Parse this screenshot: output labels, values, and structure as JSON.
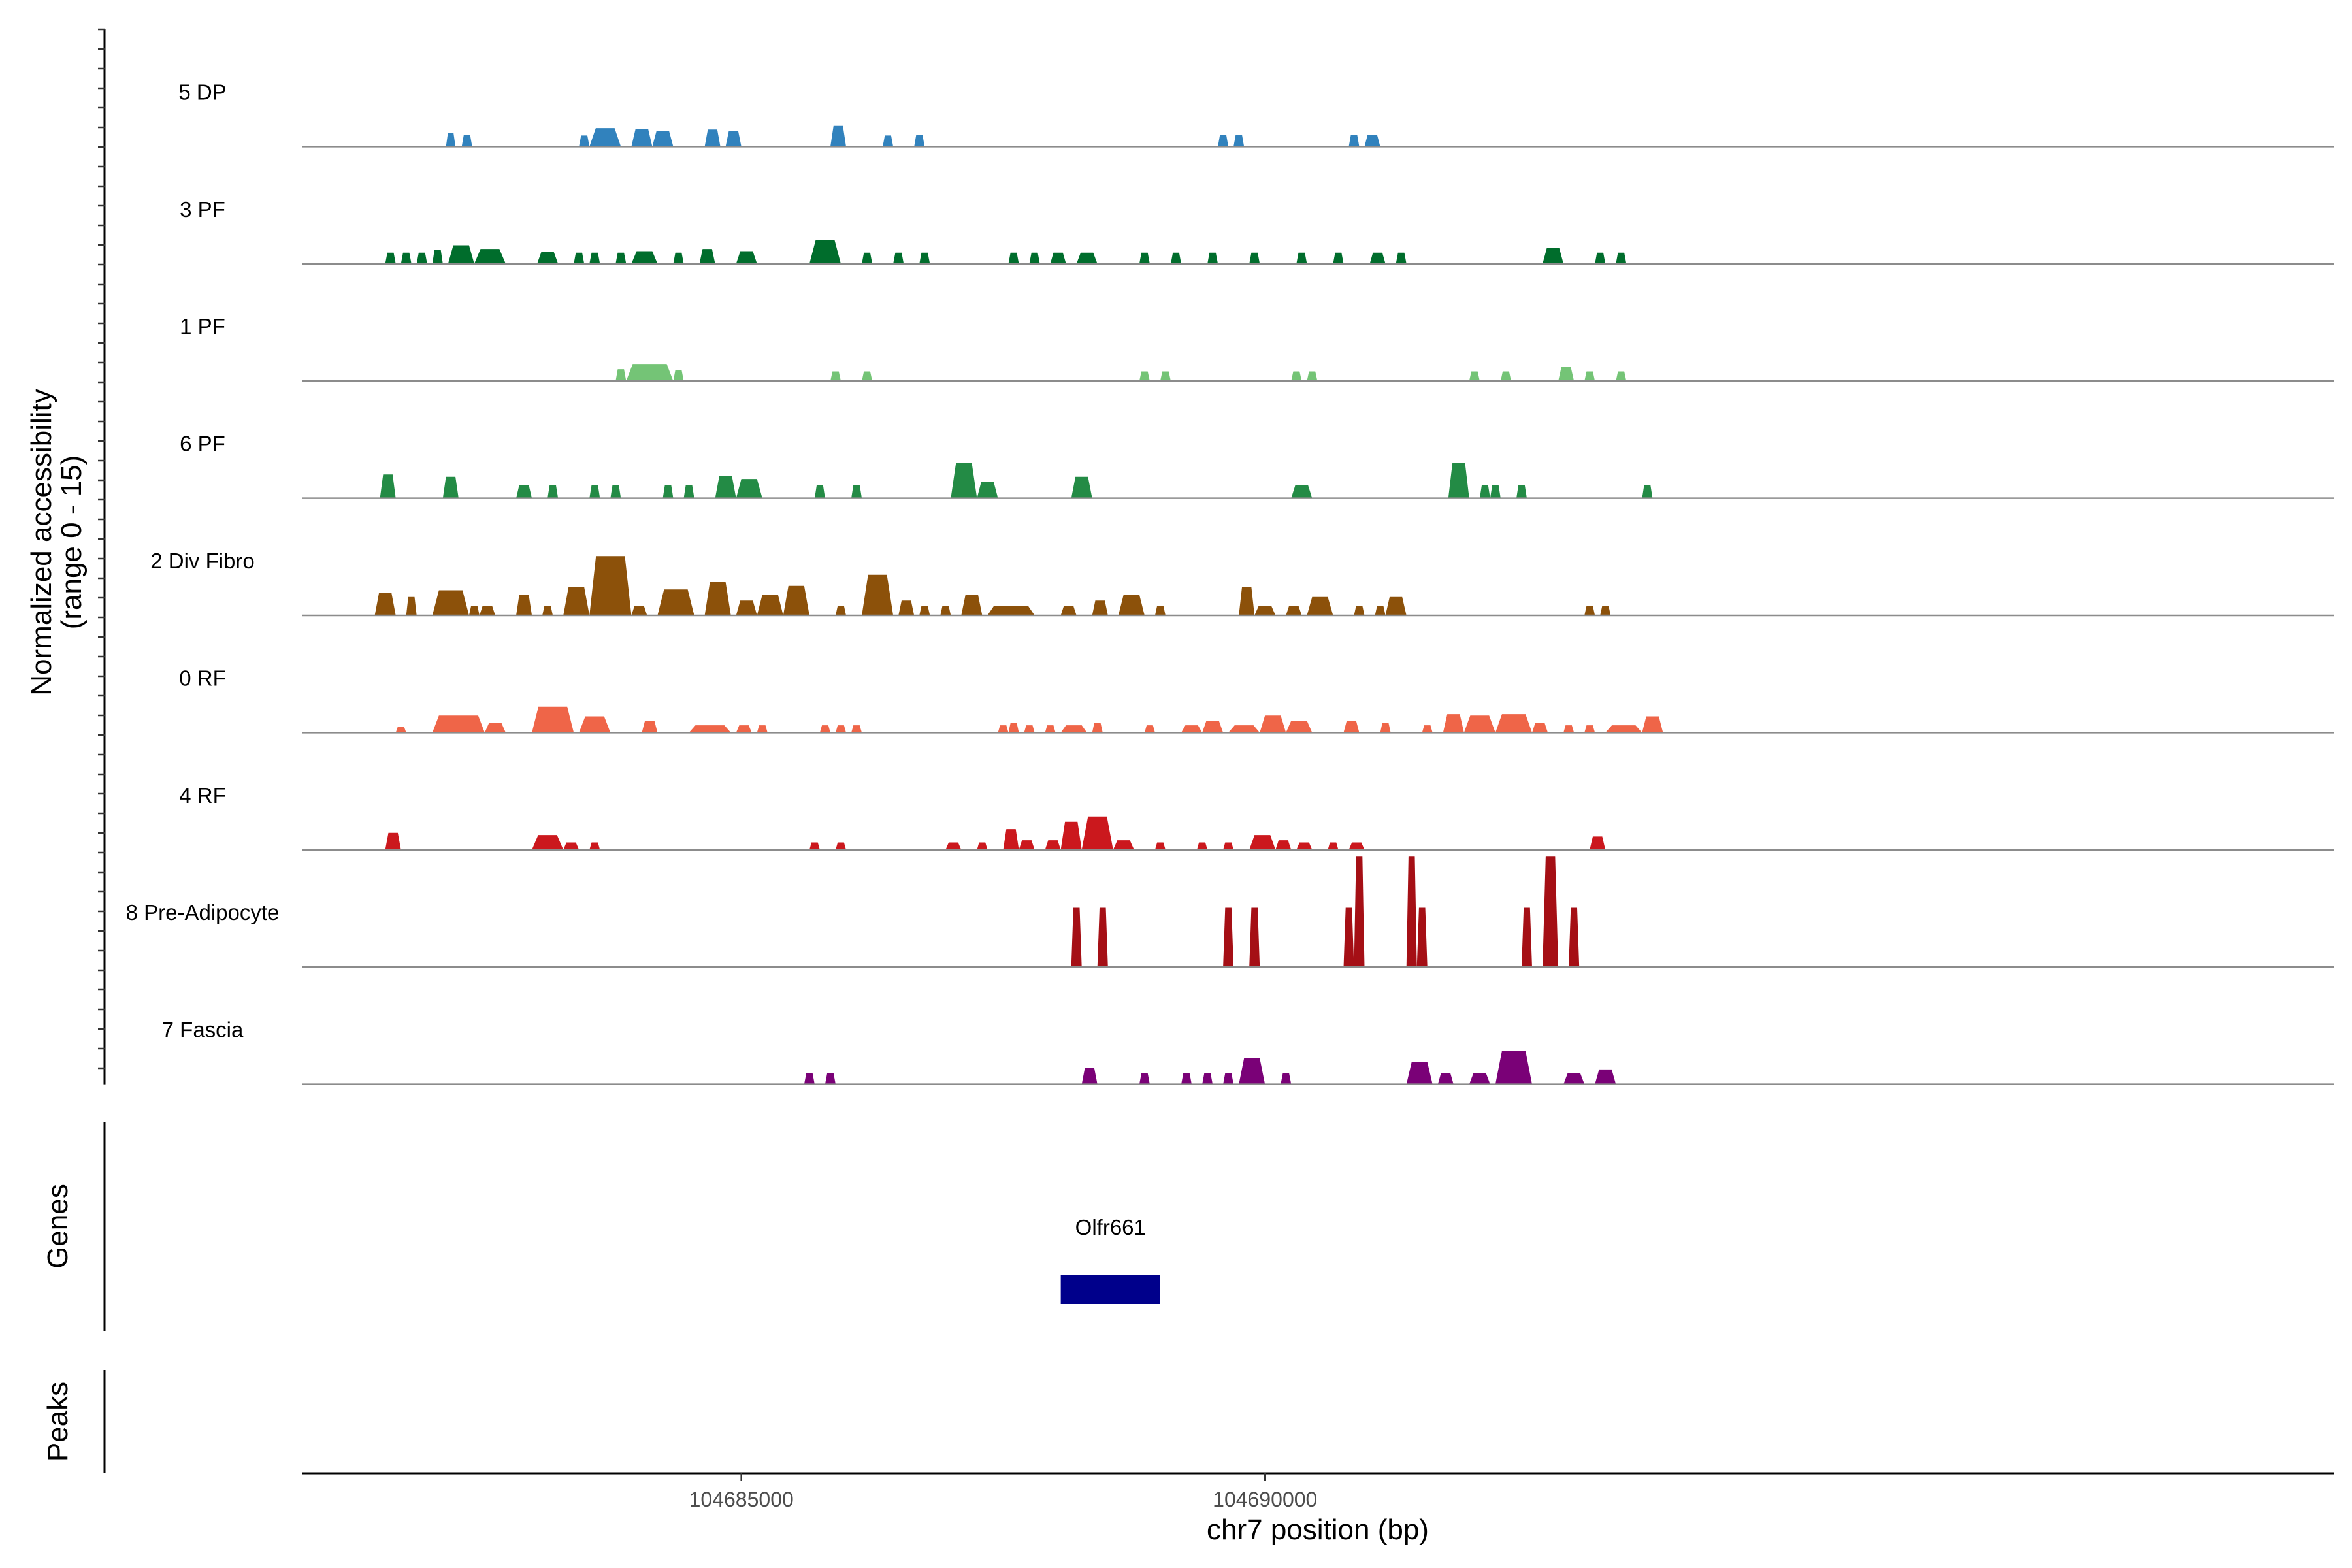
{
  "chart_data": {
    "type": "area",
    "title": "",
    "ylabel_line1": "Normalized accessibility",
    "ylabel_line2": "(range 0 - 15)",
    "yrange": [
      0,
      15
    ],
    "xlabel": "chr7 position (bp)",
    "xlim": [
      104680810,
      104700210
    ],
    "xticks": [
      {
        "value": 104685000,
        "label": "104685000"
      },
      {
        "value": 104690000,
        "label": "104690000"
      }
    ],
    "genes_label": "Genes",
    "peaks_label": "Peaks",
    "genes": [
      {
        "name": "Olfr661",
        "start": 104688050,
        "end": 104689000,
        "color": "#00008b"
      }
    ],
    "tracks": [
      {
        "name": "5 DP",
        "color": "#3182bd",
        "peaks": [
          [
            104682180,
            104682270,
            1.8
          ],
          [
            104682330,
            104682430,
            1.6
          ],
          [
            104683450,
            104683550,
            1.5
          ],
          [
            104683550,
            104683850,
            2.5
          ],
          [
            104683950,
            104684150,
            2.4
          ],
          [
            104684150,
            104684350,
            2.1
          ],
          [
            104684650,
            104684800,
            2.3
          ],
          [
            104684850,
            104685000,
            2.1
          ],
          [
            104685850,
            104686000,
            2.8
          ],
          [
            104686350,
            104686450,
            1.5
          ],
          [
            104686650,
            104686750,
            1.6
          ],
          [
            104689550,
            104689650,
            1.6
          ],
          [
            104689700,
            104689800,
            1.6
          ],
          [
            104690800,
            104690900,
            1.6
          ],
          [
            104690950,
            104691100,
            1.6
          ]
        ]
      },
      {
        "name": "3 PF",
        "color": "#006d2c",
        "peaks": [
          [
            104681600,
            104681700,
            1.5
          ],
          [
            104681750,
            104681850,
            1.5
          ],
          [
            104681900,
            104682000,
            1.5
          ],
          [
            104682050,
            104682150,
            1.9
          ],
          [
            104682200,
            104682450,
            2.5
          ],
          [
            104682450,
            104682750,
            2.0
          ],
          [
            104683050,
            104683250,
            1.6
          ],
          [
            104683400,
            104683500,
            1.5
          ],
          [
            104683550,
            104683650,
            1.5
          ],
          [
            104683800,
            104683900,
            1.5
          ],
          [
            104683950,
            104684200,
            1.7
          ],
          [
            104684350,
            104684450,
            1.5
          ],
          [
            104684600,
            104684750,
            2.0
          ],
          [
            104684950,
            104685150,
            1.7
          ],
          [
            104685650,
            104685950,
            3.2
          ],
          [
            104686150,
            104686250,
            1.5
          ],
          [
            104686450,
            104686550,
            1.5
          ],
          [
            104686700,
            104686800,
            1.5
          ],
          [
            104687550,
            104687650,
            1.5
          ],
          [
            104687750,
            104687850,
            1.5
          ],
          [
            104687950,
            104688100,
            1.5
          ],
          [
            104688200,
            104688400,
            1.5
          ],
          [
            104688800,
            104688900,
            1.5
          ],
          [
            104689100,
            104689200,
            1.5
          ],
          [
            104689450,
            104689550,
            1.5
          ],
          [
            104689850,
            104689950,
            1.5
          ],
          [
            104690300,
            104690400,
            1.5
          ],
          [
            104690650,
            104690750,
            1.5
          ],
          [
            104691000,
            104691150,
            1.5
          ],
          [
            104691250,
            104691350,
            1.5
          ],
          [
            104692650,
            104692850,
            2.1
          ],
          [
            104693150,
            104693250,
            1.5
          ],
          [
            104693350,
            104693450,
            1.5
          ]
        ]
      },
      {
        "name": "1 PF",
        "color": "#74c476",
        "peaks": [
          [
            104683800,
            104683900,
            1.6
          ],
          [
            104683900,
            104684350,
            2.3
          ],
          [
            104684350,
            104684450,
            1.5
          ],
          [
            104685850,
            104685950,
            1.3
          ],
          [
            104686150,
            104686250,
            1.3
          ],
          [
            104688800,
            104688900,
            1.3
          ],
          [
            104689000,
            104689100,
            1.3
          ],
          [
            104690250,
            104690350,
            1.3
          ],
          [
            104690400,
            104690500,
            1.3
          ],
          [
            104691950,
            104692050,
            1.3
          ],
          [
            104692250,
            104692350,
            1.3
          ],
          [
            104692800,
            104692950,
            1.9
          ],
          [
            104693050,
            104693150,
            1.3
          ],
          [
            104693350,
            104693450,
            1.3
          ]
        ]
      },
      {
        "name": "6 PF",
        "color": "#238b45",
        "peaks": [
          [
            104681550,
            104681700,
            3.2
          ],
          [
            104682150,
            104682300,
            2.9
          ],
          [
            104682850,
            104683000,
            1.8
          ],
          [
            104683150,
            104683250,
            1.8
          ],
          [
            104683550,
            104683650,
            1.8
          ],
          [
            104683750,
            104683850,
            1.8
          ],
          [
            104684250,
            104684350,
            1.8
          ],
          [
            104684450,
            104684550,
            1.8
          ],
          [
            104684750,
            104684950,
            3.0
          ],
          [
            104684950,
            104685200,
            2.6
          ],
          [
            104685700,
            104685800,
            1.8
          ],
          [
            104686050,
            104686150,
            1.8
          ],
          [
            104687000,
            104687250,
            4.8
          ],
          [
            104687250,
            104687450,
            2.2
          ],
          [
            104688150,
            104688350,
            2.9
          ],
          [
            104690250,
            104690450,
            1.8
          ],
          [
            104691750,
            104691950,
            4.8
          ],
          [
            104692050,
            104692150,
            1.8
          ],
          [
            104692150,
            104692250,
            1.8
          ],
          [
            104692400,
            104692500,
            1.8
          ],
          [
            104693600,
            104693700,
            1.8
          ]
        ]
      },
      {
        "name": "2 Div Fibro",
        "color": "#8c510a",
        "peaks": [
          [
            104681500,
            104681700,
            3.0
          ],
          [
            104681800,
            104681900,
            2.5
          ],
          [
            104682050,
            104682400,
            3.4
          ],
          [
            104682400,
            104682500,
            1.3
          ],
          [
            104682500,
            104682650,
            1.3
          ],
          [
            104682850,
            104683000,
            2.8
          ],
          [
            104683100,
            104683200,
            1.3
          ],
          [
            104683300,
            104683550,
            3.8
          ],
          [
            104683550,
            104683950,
            8.0
          ],
          [
            104683950,
            104684100,
            1.3
          ],
          [
            104684200,
            104684550,
            3.5
          ],
          [
            104684650,
            104684900,
            4.5
          ],
          [
            104684950,
            104685150,
            2.0
          ],
          [
            104685150,
            104685400,
            2.8
          ],
          [
            104685400,
            104685650,
            4.0
          ],
          [
            104685900,
            104686000,
            1.3
          ],
          [
            104686150,
            104686450,
            5.5
          ],
          [
            104686500,
            104686650,
            2.0
          ],
          [
            104686700,
            104686800,
            1.3
          ],
          [
            104686900,
            104687000,
            1.3
          ],
          [
            104687100,
            104687300,
            2.8
          ],
          [
            104687350,
            104687800,
            1.3
          ],
          [
            104688050,
            104688200,
            1.3
          ],
          [
            104688350,
            104688500,
            2.0
          ],
          [
            104688600,
            104688850,
            2.8
          ],
          [
            104688950,
            104689050,
            1.3
          ],
          [
            104689750,
            104689900,
            3.8
          ],
          [
            104689900,
            104690100,
            1.3
          ],
          [
            104690200,
            104690350,
            1.3
          ],
          [
            104690400,
            104690650,
            2.5
          ],
          [
            104690850,
            104690950,
            1.3
          ],
          [
            104691050,
            104691150,
            1.3
          ],
          [
            104691150,
            104691350,
            2.5
          ],
          [
            104693050,
            104693150,
            1.3
          ],
          [
            104693200,
            104693300,
            1.3
          ]
        ]
      },
      {
        "name": "0 RF",
        "color": "#ef6548",
        "peaks": [
          [
            104681700,
            104681800,
            0.8
          ],
          [
            104682050,
            104682550,
            2.3
          ],
          [
            104682550,
            104682750,
            1.3
          ],
          [
            104683000,
            104683400,
            3.5
          ],
          [
            104683450,
            104683750,
            2.2
          ],
          [
            104684050,
            104684200,
            1.6
          ],
          [
            104684500,
            104684900,
            1.0
          ],
          [
            104684950,
            104685100,
            1.0
          ],
          [
            104685150,
            104685250,
            1.0
          ],
          [
            104685750,
            104685850,
            1.0
          ],
          [
            104685900,
            104686000,
            1.0
          ],
          [
            104686050,
            104686150,
            1.0
          ],
          [
            104687450,
            104687550,
            1.0
          ],
          [
            104687550,
            104687650,
            1.3
          ],
          [
            104687700,
            104687800,
            1.0
          ],
          [
            104687900,
            104688000,
            1.0
          ],
          [
            104688050,
            104688300,
            1.0
          ],
          [
            104688350,
            104688450,
            1.3
          ],
          [
            104688850,
            104688950,
            1.0
          ],
          [
            104689200,
            104689400,
            1.0
          ],
          [
            104689400,
            104689600,
            1.6
          ],
          [
            104689650,
            104689950,
            1.0
          ],
          [
            104689950,
            104690200,
            2.3
          ],
          [
            104690200,
            104690450,
            1.6
          ],
          [
            104690750,
            104690900,
            1.6
          ],
          [
            104691100,
            104691200,
            1.3
          ],
          [
            104691500,
            104691600,
            1.0
          ],
          [
            104691700,
            104691900,
            2.5
          ],
          [
            104691900,
            104692200,
            2.3
          ],
          [
            104692200,
            104692550,
            2.5
          ],
          [
            104692550,
            104692700,
            1.3
          ],
          [
            104692850,
            104692950,
            1.0
          ],
          [
            104693050,
            104693150,
            1.0
          ],
          [
            104693250,
            104693600,
            1.0
          ],
          [
            104693600,
            104693800,
            2.2
          ]
        ]
      },
      {
        "name": "4 RF",
        "color": "#cb181d",
        "peaks": [
          [
            104681600,
            104681750,
            2.3
          ],
          [
            104683000,
            104683300,
            2.0
          ],
          [
            104683300,
            104683450,
            1.0
          ],
          [
            104683550,
            104683650,
            1.0
          ],
          [
            104685650,
            104685750,
            1.0
          ],
          [
            104685900,
            104686000,
            1.0
          ],
          [
            104686950,
            104687100,
            1.0
          ],
          [
            104687250,
            104687350,
            1.0
          ],
          [
            104687500,
            104687650,
            2.8
          ],
          [
            104687650,
            104687800,
            1.3
          ],
          [
            104687900,
            104688050,
            1.3
          ],
          [
            104688050,
            104688250,
            3.8
          ],
          [
            104688250,
            104688550,
            4.5
          ],
          [
            104688550,
            104688750,
            1.3
          ],
          [
            104688950,
            104689050,
            1.0
          ],
          [
            104689350,
            104689450,
            1.0
          ],
          [
            104689600,
            104689700,
            1.0
          ],
          [
            104689850,
            104690100,
            2.0
          ],
          [
            104690100,
            104690250,
            1.3
          ],
          [
            104690300,
            104690450,
            1.0
          ],
          [
            104690600,
            104690700,
            1.0
          ],
          [
            104690800,
            104690950,
            1.0
          ],
          [
            104693100,
            104693250,
            1.8
          ]
        ]
      },
      {
        "name": "8 Pre-Adipocyte",
        "color": "#a50f15",
        "peaks": [
          [
            104688150,
            104688250,
            8.0
          ],
          [
            104688400,
            104688500,
            8.0
          ],
          [
            104689600,
            104689700,
            8.0
          ],
          [
            104689850,
            104689950,
            8.0
          ],
          [
            104690750,
            104690850,
            8.0
          ],
          [
            104690850,
            104690950,
            15.0
          ],
          [
            104691350,
            104691450,
            15.0
          ],
          [
            104691450,
            104691550,
            8.0
          ],
          [
            104692450,
            104692550,
            8.0
          ],
          [
            104692650,
            104692800,
            15.0
          ],
          [
            104692900,
            104693000,
            8.0
          ]
        ]
      },
      {
        "name": "7 Fascia",
        "color": "#7a0177",
        "peaks": [
          [
            104685600,
            104685700,
            1.5
          ],
          [
            104685800,
            104685900,
            1.5
          ],
          [
            104688250,
            104688400,
            2.2
          ],
          [
            104688800,
            104688900,
            1.5
          ],
          [
            104689200,
            104689300,
            1.5
          ],
          [
            104689400,
            104689500,
            1.5
          ],
          [
            104689600,
            104689700,
            1.5
          ],
          [
            104689750,
            104690000,
            3.5
          ],
          [
            104690150,
            104690250,
            1.5
          ],
          [
            104691350,
            104691600,
            3.0
          ],
          [
            104691650,
            104691800,
            1.5
          ],
          [
            104691950,
            104692150,
            1.5
          ],
          [
            104692200,
            104692550,
            4.5
          ],
          [
            104692850,
            104693050,
            1.5
          ],
          [
            104693150,
            104693350,
            2.0
          ]
        ]
      }
    ]
  }
}
